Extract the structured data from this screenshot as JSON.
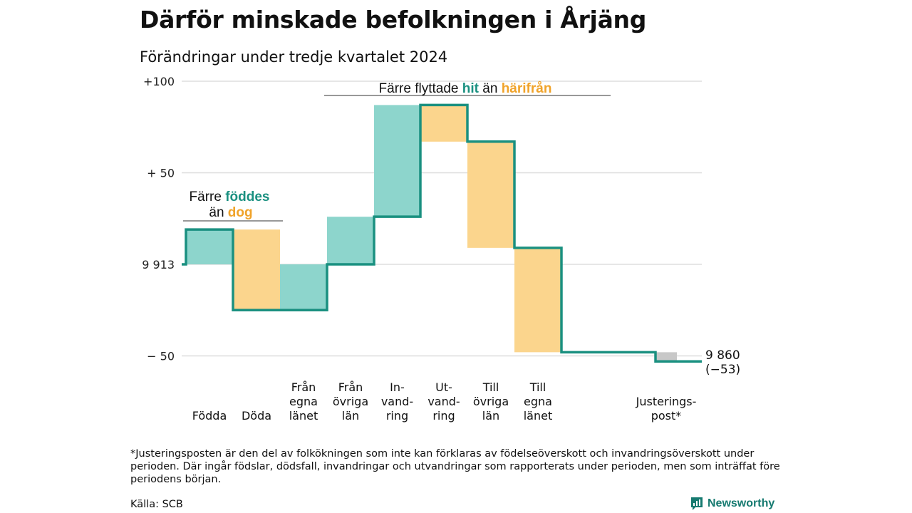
{
  "title": "Därför minskade befolkningen i Årjäng",
  "subtitle": "Förändringar under tredje kvartalet 2024",
  "colors": {
    "inflow": "#8dd5cc",
    "outflow": "#fbd58d",
    "adjustment": "#c8c8c8",
    "line": "#1a9080",
    "accent_teal": "#1a9080",
    "accent_orange": "#f0a32a",
    "grid": "#dddddd"
  },
  "annotations": {
    "births": {
      "line1_pre": "Färre ",
      "line1_hl": "föddes",
      "line2_pre": "än ",
      "line2_hl": "dog"
    },
    "moves": {
      "pre": "Färre flyttade ",
      "hl1": "hit",
      "mid": " än ",
      "hl2": "härifrån"
    }
  },
  "end_label": {
    "value": "9 860",
    "change": "(−53)"
  },
  "footnote": "*Justeringsposten är den del av folkökningen som inte kan förklaras av födelseöverskott och invandringsöverskott under perioden. Där ingår födslar, dödsfall, invandringar och utvandringar som rapporterats under perioden, men som inträffat före periodens början.",
  "source": "Källa: SCB",
  "brand": {
    "name": "Newsworthy",
    "icon": "bar-chart-icon"
  },
  "chart_data": {
    "type": "waterfall",
    "title": "Därför minskade befolkningen i Årjäng",
    "subtitle": "Förändringar under tredje kvartalet 2024",
    "start_value": 9913,
    "end_value": 9860,
    "net_change": -53,
    "y_ticks": [
      {
        "value": 100,
        "label": "+100"
      },
      {
        "value": 50,
        "label": "+ 50"
      },
      {
        "value": 0,
        "label": "9 913"
      },
      {
        "value": -50,
        "label": "−  50"
      }
    ],
    "ylim": [
      -55,
      100
    ],
    "grid": true,
    "categories": [
      {
        "label": [
          "Födda"
        ],
        "value": 19,
        "kind": "inflow"
      },
      {
        "label": [
          "Döda"
        ],
        "value": -44,
        "kind": "outflow"
      },
      {
        "label": [
          "Från",
          "egna",
          "länet"
        ],
        "value": 25,
        "kind": "inflow"
      },
      {
        "label": [
          "Från",
          "övriga",
          "län"
        ],
        "value": 26,
        "kind": "inflow"
      },
      {
        "label": [
          "In-",
          "vand-",
          "ring"
        ],
        "value": 61,
        "kind": "inflow"
      },
      {
        "label": [
          "Ut-",
          "vand-",
          "ring"
        ],
        "value": -20,
        "kind": "outflow"
      },
      {
        "label": [
          "Till",
          "övriga",
          "län"
        ],
        "value": -58,
        "kind": "outflow"
      },
      {
        "label": [
          "Till",
          "egna",
          "länet"
        ],
        "value": -57,
        "kind": "outflow"
      },
      {
        "label": [
          "Justerings-",
          "post*"
        ],
        "value": -5,
        "kind": "adjustment"
      }
    ]
  }
}
